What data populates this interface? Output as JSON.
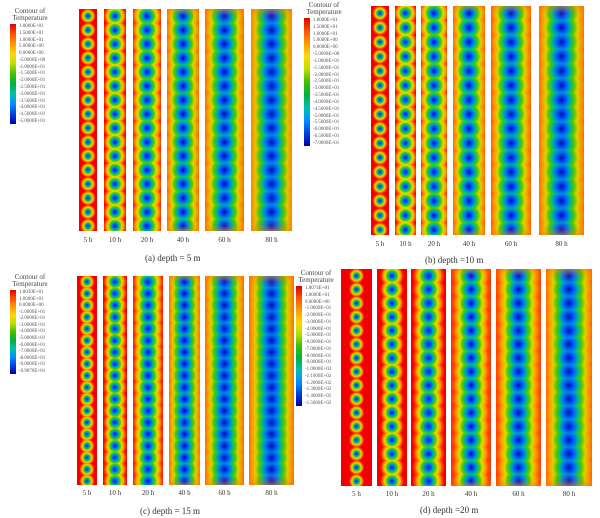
{
  "legend_title": "Contour of Temperature",
  "times": [
    "5 h",
    "10 h",
    "20 h",
    "40 h",
    "60 h",
    "80 h"
  ],
  "panels": [
    {
      "caption": "(a) depth = 5 m",
      "legend": [
        "1.8000E+01",
        "1.5000E+01",
        "1.0000E+01",
        "5.0000E+00",
        "0.0000E+00",
        "-5.0000E+00",
        "-1.0000E+01",
        "-1.5000E+01",
        "-2.0000E+01",
        "-2.5000E+01",
        "-3.0000E+01",
        "-3.5000E+01",
        "-4.0000E+01",
        "-4.5000E+01",
        "-5.0000E+01"
      ]
    },
    {
      "caption": "(b) depth =10 m",
      "legend": [
        "1.8000E+01",
        "1.5000E+01",
        "1.0000E+01",
        "5.0000E+00",
        "0.0000E+00",
        "-5.0000E+00",
        "-1.0000E+01",
        "-1.5000E+01",
        "-2.0000E+01",
        "-2.5000E+01",
        "-3.0000E+01",
        "-3.5000E+01",
        "-4.0000E+01",
        "-4.5000E+01",
        "-5.0000E+01",
        "-5.5000E+01",
        "-6.0000E+01",
        "-6.5000E+01",
        "-7.0000E+01"
      ]
    },
    {
      "caption": "(c) depth = 15 m",
      "legend": [
        "1.8030E+01",
        "1.0000E+01",
        "0.0000E+00",
        "-1.0000E+01",
        "-2.0000E+01",
        "-3.0000E+01",
        "-4.0000E+01",
        "-5.0000E+01",
        "-6.0000E+01",
        "-7.0000E+01",
        "-8.0000E+01",
        "-9.0000E+01",
        "-9.9870E+01"
      ]
    },
    {
      "caption": "(d) depth =20 m",
      "legend": [
        "1.8074E+01",
        "1.0000E+01",
        "0.0000E+00",
        "-1.0000E+01",
        "-2.0000E+01",
        "-3.0000E+01",
        "-4.0000E+01",
        "-5.0000E+01",
        "-6.0000E+01",
        "-7.0000E+01",
        "-8.0000E+01",
        "-9.0000E+01",
        "-1.0000E+02",
        "-1.1000E+02",
        "-1.2000E+02",
        "-1.3000E+02",
        "-1.4000E+02",
        "-1.5000E+02"
      ]
    }
  ]
}
